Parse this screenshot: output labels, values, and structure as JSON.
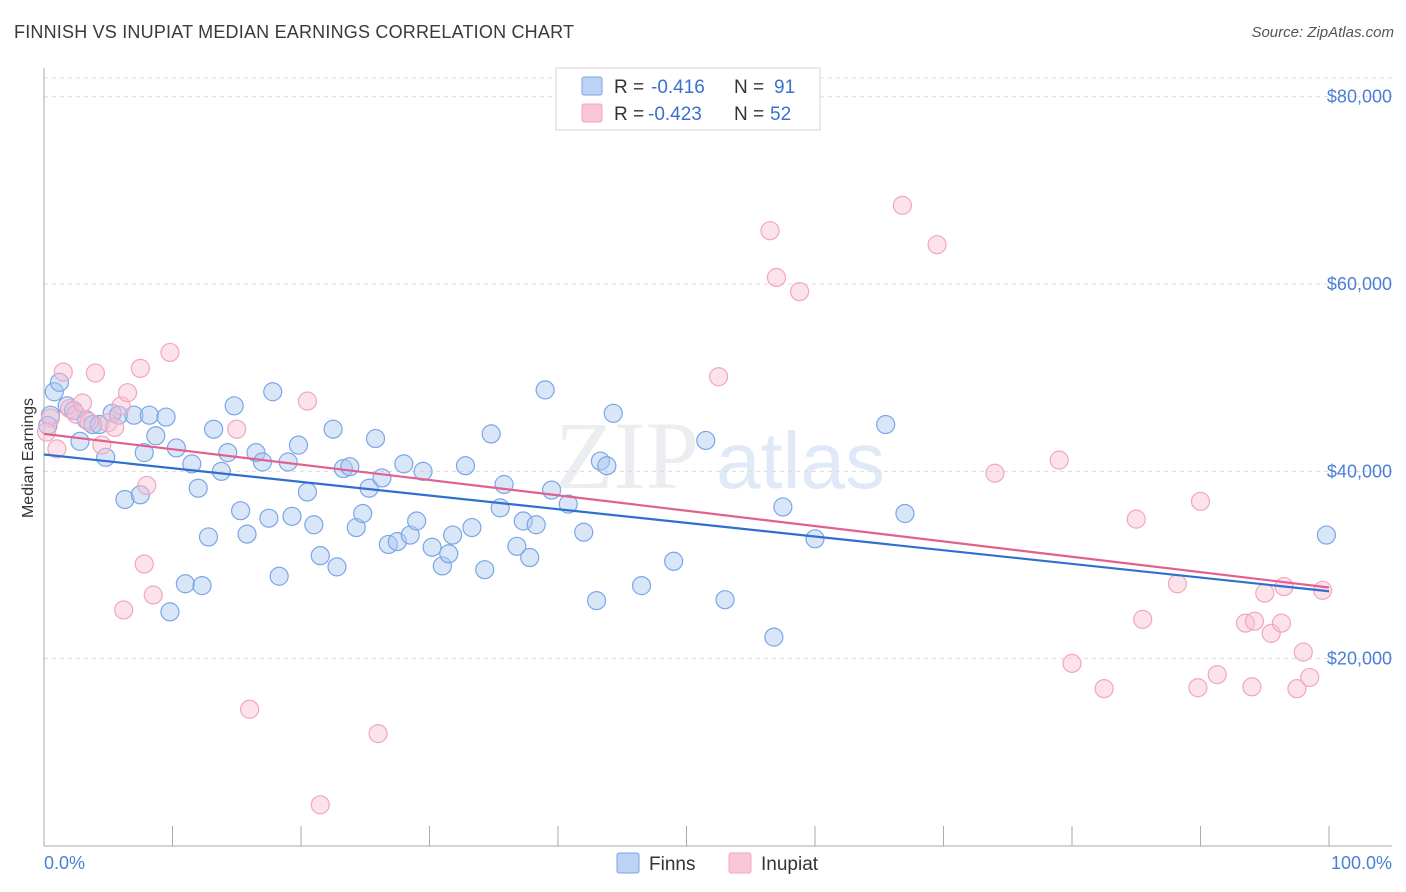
{
  "header": {
    "title": "FINNISH VS INUPIAT MEDIAN EARNINGS CORRELATION CHART",
    "source": "Source: ZipAtlas.com"
  },
  "watermark": {
    "zip": "ZIP",
    "atlas": "atlas"
  },
  "chart_data": {
    "type": "scatter",
    "title": "FINNISH VS INUPIAT MEDIAN EARNINGS CORRELATION CHART",
    "xlabel": "",
    "ylabel": "Median Earnings",
    "xlim": [
      0,
      100
    ],
    "ylim": [
      0,
      82000
    ],
    "x_tick_labels": [
      {
        "value": 0,
        "label": "0.0%"
      },
      {
        "value": 100,
        "label": "100.0%"
      }
    ],
    "y_ticks": [
      {
        "value": 20000,
        "label": "$20,000"
      },
      {
        "value": 40000,
        "label": "$40,000"
      },
      {
        "value": 60000,
        "label": "$60,000"
      },
      {
        "value": 80000,
        "label": "$80,000"
      }
    ],
    "legend": {
      "entries": [
        {
          "series": "Finns",
          "r_label": "R =",
          "r": "-0.416",
          "n_label": "N =",
          "n": "91"
        },
        {
          "series": "Inupiat",
          "r_label": "R =",
          "r": "-0.423",
          "n_label": "N =",
          "n": "52"
        }
      ]
    },
    "series": [
      {
        "name": "Finns",
        "color": "#7aa6e8",
        "line_color": "#2f6fd1",
        "trend": {
          "x0": 0,
          "y0": 41800,
          "x1": 100,
          "y1": 27200
        },
        "points": [
          [
            0.5,
            46000
          ],
          [
            0.8,
            48500
          ],
          [
            1.2,
            49500
          ],
          [
            1.8,
            47000
          ],
          [
            2.3,
            46500
          ],
          [
            2.8,
            43200
          ],
          [
            3.3,
            45500
          ],
          [
            3.8,
            45000
          ],
          [
            4.3,
            45000
          ],
          [
            4.8,
            41500
          ],
          [
            5.3,
            46200
          ],
          [
            5.8,
            46000
          ],
          [
            6.3,
            37000
          ],
          [
            7.0,
            46000
          ],
          [
            7.5,
            37500
          ],
          [
            7.8,
            42000
          ],
          [
            8.2,
            46000
          ],
          [
            8.7,
            43800
          ],
          [
            9.5,
            45800
          ],
          [
            9.8,
            25000
          ],
          [
            10.3,
            42500
          ],
          [
            11.0,
            28000
          ],
          [
            11.5,
            40800
          ],
          [
            12.0,
            38200
          ],
          [
            12.3,
            27800
          ],
          [
            12.8,
            33000
          ],
          [
            13.2,
            44500
          ],
          [
            13.8,
            40000
          ],
          [
            14.3,
            42000
          ],
          [
            14.8,
            47000
          ],
          [
            15.3,
            35800
          ],
          [
            15.8,
            33300
          ],
          [
            16.5,
            42000
          ],
          [
            17.0,
            41000
          ],
          [
            17.5,
            35000
          ],
          [
            17.8,
            48500
          ],
          [
            18.3,
            28800
          ],
          [
            19.0,
            41000
          ],
          [
            19.3,
            35200
          ],
          [
            19.8,
            42800
          ],
          [
            20.5,
            37800
          ],
          [
            21.0,
            34300
          ],
          [
            21.5,
            31000
          ],
          [
            22.5,
            44500
          ],
          [
            22.8,
            29800
          ],
          [
            23.3,
            40300
          ],
          [
            23.8,
            40500
          ],
          [
            24.3,
            34000
          ],
          [
            24.8,
            35500
          ],
          [
            25.3,
            38200
          ],
          [
            25.8,
            43500
          ],
          [
            26.3,
            39300
          ],
          [
            26.8,
            32200
          ],
          [
            27.5,
            32500
          ],
          [
            28.0,
            40800
          ],
          [
            28.5,
            33200
          ],
          [
            29.0,
            34700
          ],
          [
            29.5,
            40000
          ],
          [
            30.2,
            31900
          ],
          [
            31.0,
            29900
          ],
          [
            31.5,
            31200
          ],
          [
            31.8,
            33200
          ],
          [
            32.8,
            40600
          ],
          [
            33.3,
            34000
          ],
          [
            34.3,
            29500
          ],
          [
            34.8,
            44000
          ],
          [
            35.5,
            36100
          ],
          [
            35.8,
            38600
          ],
          [
            36.8,
            32000
          ],
          [
            37.3,
            34700
          ],
          [
            37.8,
            30800
          ],
          [
            38.3,
            34300
          ],
          [
            39.0,
            48700
          ],
          [
            39.5,
            38000
          ],
          [
            40.8,
            36500
          ],
          [
            42.0,
            33500
          ],
          [
            43.0,
            26200
          ],
          [
            43.3,
            41100
          ],
          [
            43.8,
            40600
          ],
          [
            44.3,
            46200
          ],
          [
            46.5,
            27800
          ],
          [
            49.0,
            30400
          ],
          [
            51.5,
            43300
          ],
          [
            53.0,
            26300
          ],
          [
            56.8,
            22300
          ],
          [
            57.5,
            36200
          ],
          [
            60.0,
            32800
          ],
          [
            65.5,
            45000
          ],
          [
            67.0,
            35500
          ],
          [
            99.8,
            33200
          ],
          [
            0.3,
            44900
          ]
        ]
      },
      {
        "name": "Inupiat",
        "color": "#f2a6bf",
        "line_color": "#e0608e",
        "trend": {
          "x0": 0,
          "y0": 44000,
          "x1": 100,
          "y1": 27600
        },
        "points": [
          [
            0.5,
            45700
          ],
          [
            1.0,
            42400
          ],
          [
            1.5,
            50600
          ],
          [
            2.0,
            46700
          ],
          [
            2.5,
            46100
          ],
          [
            3.0,
            47300
          ],
          [
            3.5,
            45300
          ],
          [
            4.0,
            50500
          ],
          [
            4.5,
            42800
          ],
          [
            5.0,
            45200
          ],
          [
            5.5,
            44700
          ],
          [
            6.0,
            47000
          ],
          [
            6.2,
            25200
          ],
          [
            6.5,
            48400
          ],
          [
            7.5,
            51000
          ],
          [
            7.8,
            30100
          ],
          [
            8.0,
            38500
          ],
          [
            8.5,
            26800
          ],
          [
            9.8,
            52700
          ],
          [
            15.0,
            44500
          ],
          [
            16.0,
            14600
          ],
          [
            20.5,
            47500
          ],
          [
            21.5,
            4400
          ],
          [
            26.0,
            12000
          ],
          [
            52.5,
            50100
          ],
          [
            56.5,
            65700
          ],
          [
            57.0,
            60700
          ],
          [
            58.8,
            59200
          ],
          [
            66.8,
            68400
          ],
          [
            69.5,
            64200
          ],
          [
            74.0,
            39800
          ],
          [
            79.0,
            41200
          ],
          [
            80.0,
            19500
          ],
          [
            82.5,
            16800
          ],
          [
            85.0,
            34900
          ],
          [
            85.5,
            24200
          ],
          [
            88.2,
            28000
          ],
          [
            89.8,
            16900
          ],
          [
            90.0,
            36800
          ],
          [
            91.3,
            18300
          ],
          [
            93.5,
            23800
          ],
          [
            94.0,
            17000
          ],
          [
            94.2,
            24000
          ],
          [
            95.0,
            27000
          ],
          [
            95.5,
            22700
          ],
          [
            96.3,
            23800
          ],
          [
            96.5,
            27700
          ],
          [
            97.5,
            16800
          ],
          [
            98.0,
            20700
          ],
          [
            98.5,
            18000
          ],
          [
            99.5,
            27300
          ],
          [
            0.2,
            44200
          ]
        ]
      }
    ],
    "grid": true
  }
}
